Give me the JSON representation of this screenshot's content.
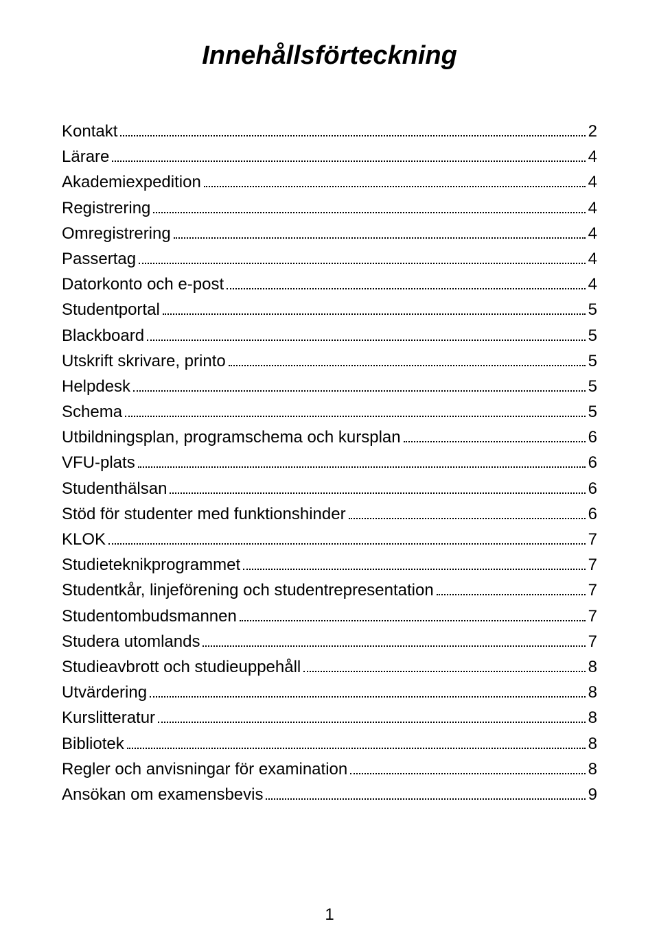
{
  "title": "Innehållsförteckning",
  "page_number": "1",
  "colors": {
    "background": "#ffffff",
    "text": "#000000",
    "dots": "#000000"
  },
  "typography": {
    "title_fontsize_pt": 28,
    "title_weight": "bold",
    "title_style": "italic",
    "body_fontsize_pt": 18,
    "font_family": "Arial"
  },
  "toc": {
    "entries": [
      {
        "label": "Kontakt",
        "page": "2"
      },
      {
        "label": "Lärare",
        "page": "4"
      },
      {
        "label": "Akademiexpedition",
        "page": "4"
      },
      {
        "label": "Registrering",
        "page": "4"
      },
      {
        "label": "Omregistrering",
        "page": "4"
      },
      {
        "label": "Passertag",
        "page": "4"
      },
      {
        "label": "Datorkonto och e-post",
        "page": "4"
      },
      {
        "label": "Studentportal",
        "page": "5"
      },
      {
        "label": "Blackboard",
        "page": "5"
      },
      {
        "label": "Utskrift skrivare, printo",
        "page": "5"
      },
      {
        "label": "Helpdesk",
        "page": "5"
      },
      {
        "label": "Schema",
        "page": "5"
      },
      {
        "label": "Utbildningsplan, programschema och kursplan",
        "page": "6"
      },
      {
        "label": "VFU-plats",
        "page": "6"
      },
      {
        "label": "Studenthälsan",
        "page": "6"
      },
      {
        "label": "Stöd för studenter med funktionshinder",
        "page": "6"
      },
      {
        "label": "KLOK",
        "page": "7"
      },
      {
        "label": "Studieteknikprogrammet",
        "page": "7"
      },
      {
        "label": "Studentkår, linjeförening och studentrepresentation",
        "page": "7"
      },
      {
        "label": "Studentombudsmannen",
        "page": "7"
      },
      {
        "label": "Studera utomlands",
        "page": "7"
      },
      {
        "label": "Studieavbrott och studieuppehåll",
        "page": "8"
      },
      {
        "label": "Utvärdering",
        "page": "8"
      },
      {
        "label": "Kurslitteratur",
        "page": "8"
      },
      {
        "label": "Bibliotek",
        "page": "8"
      },
      {
        "label": "Regler och anvisningar för examination",
        "page": "8"
      },
      {
        "label": "Ansökan om examensbevis",
        "page": "9"
      }
    ]
  }
}
